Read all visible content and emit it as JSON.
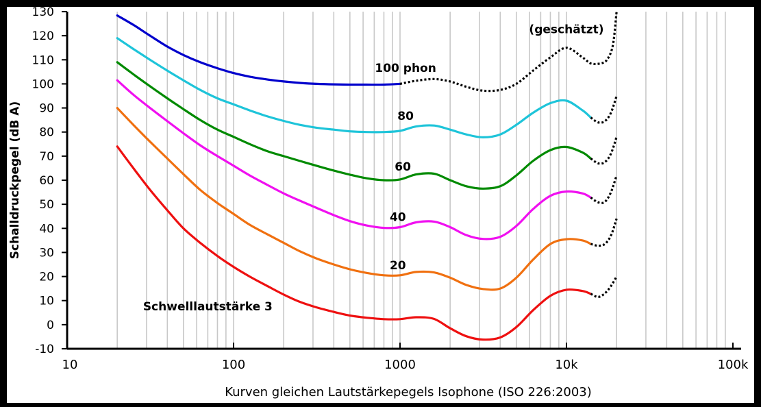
{
  "chart_data": {
    "type": "line",
    "title": "",
    "xlabel": "Kurven gleichen Lautstärkepegels Isophone (ISO 226:2003)",
    "ylabel": "Schalldruckpegel (dB A)",
    "x_scale": "log",
    "xlim": [
      10,
      100000
    ],
    "ylim": [
      -10,
      130
    ],
    "x_ticks": [
      10,
      100,
      1000,
      10000,
      100000
    ],
    "x_tick_labels": [
      "10",
      "100",
      "1000",
      "10k",
      "100k"
    ],
    "y_ticks": [
      -10,
      0,
      10,
      20,
      30,
      40,
      50,
      60,
      70,
      80,
      90,
      100,
      110,
      120,
      130
    ],
    "y_tick_labels": [
      "-10",
      "0",
      "10",
      "20",
      "30",
      "40",
      "50",
      "60",
      "70",
      "80",
      "90",
      "100",
      "110",
      "120",
      "130"
    ],
    "grid": "vertical",
    "annotations": [
      {
        "text": "(geschätzt)",
        "x": 10000,
        "y": 121
      },
      {
        "text": "100 phon",
        "x": 1080,
        "y": 105
      },
      {
        "text": "80",
        "x": 1080,
        "y": 85
      },
      {
        "text": "60",
        "x": 1040,
        "y": 64
      },
      {
        "text": "40",
        "x": 970,
        "y": 43
      },
      {
        "text": "20",
        "x": 970,
        "y": 23
      },
      {
        "text": "Schwelllautstärke 3",
        "x": 70,
        "y": 6
      }
    ],
    "estimated_style": "dotted black",
    "series": [
      {
        "name": "100 phon",
        "color": "#0000cc",
        "points": [
          [
            20,
            128.4
          ],
          [
            25,
            124.5
          ],
          [
            31.5,
            120
          ],
          [
            40,
            115.5
          ],
          [
            50,
            112
          ],
          [
            63,
            109
          ],
          [
            80,
            106.5
          ],
          [
            100,
            104.5
          ],
          [
            125,
            103
          ],
          [
            160,
            101.8
          ],
          [
            200,
            101
          ],
          [
            250,
            100.4
          ],
          [
            315,
            100
          ],
          [
            400,
            99.8
          ],
          [
            500,
            99.7
          ],
          [
            630,
            99.7
          ],
          [
            800,
            99.7
          ],
          [
            1000,
            100
          ]
        ],
        "estimated": [
          [
            1000,
            100
          ],
          [
            1250,
            101.3
          ],
          [
            1600,
            102
          ],
          [
            2000,
            101
          ],
          [
            2500,
            98.8
          ],
          [
            3150,
            97.2
          ],
          [
            4000,
            97.5
          ],
          [
            5000,
            100
          ],
          [
            6300,
            105.5
          ],
          [
            8000,
            111
          ],
          [
            10000,
            115
          ],
          [
            12500,
            111
          ],
          [
            14000,
            108.5
          ],
          [
            16000,
            108.5
          ],
          [
            17500,
            110
          ],
          [
            19000,
            116
          ],
          [
            20000,
            130
          ]
        ]
      },
      {
        "name": "80",
        "color": "#1ec4d9",
        "points": [
          [
            20,
            119
          ],
          [
            25,
            114.5
          ],
          [
            31.5,
            110
          ],
          [
            40,
            105.5
          ],
          [
            50,
            101.5
          ],
          [
            63,
            97.5
          ],
          [
            80,
            94
          ],
          [
            100,
            91.5
          ],
          [
            125,
            89
          ],
          [
            160,
            86.5
          ],
          [
            200,
            84.6
          ],
          [
            250,
            83
          ],
          [
            315,
            81.8
          ],
          [
            400,
            81
          ],
          [
            500,
            80.3
          ],
          [
            630,
            80
          ],
          [
            800,
            80
          ],
          [
            1000,
            80.5
          ],
          [
            1250,
            82.3
          ],
          [
            1600,
            82.7
          ],
          [
            2000,
            81
          ],
          [
            2500,
            79
          ],
          [
            3150,
            77.8
          ],
          [
            4000,
            79
          ],
          [
            5000,
            83
          ],
          [
            6300,
            88
          ],
          [
            8000,
            92
          ],
          [
            10000,
            93
          ],
          [
            12500,
            89
          ],
          [
            14000,
            86
          ]
        ],
        "estimated": [
          [
            14000,
            86
          ],
          [
            15500,
            84
          ],
          [
            17000,
            84.5
          ],
          [
            18500,
            88
          ],
          [
            20000,
            95
          ]
        ]
      },
      {
        "name": "60",
        "color": "#008a00",
        "points": [
          [
            20,
            109
          ],
          [
            25,
            104
          ],
          [
            31.5,
            99
          ],
          [
            40,
            94
          ],
          [
            50,
            89.5
          ],
          [
            63,
            85
          ],
          [
            80,
            81
          ],
          [
            100,
            78
          ],
          [
            125,
            75
          ],
          [
            160,
            72
          ],
          [
            200,
            70
          ],
          [
            250,
            68
          ],
          [
            315,
            66
          ],
          [
            400,
            64
          ],
          [
            500,
            62.3
          ],
          [
            630,
            60.8
          ],
          [
            800,
            60
          ],
          [
            1000,
            60.3
          ],
          [
            1250,
            62.4
          ],
          [
            1600,
            62.7
          ],
          [
            2000,
            60
          ],
          [
            2500,
            57.5
          ],
          [
            3150,
            56.5
          ],
          [
            4000,
            57.5
          ],
          [
            5000,
            62
          ],
          [
            6300,
            68
          ],
          [
            8000,
            72.5
          ],
          [
            10000,
            73.8
          ],
          [
            12500,
            71.5
          ],
          [
            14000,
            69
          ]
        ],
        "estimated": [
          [
            14000,
            69
          ],
          [
            15500,
            67
          ],
          [
            17000,
            67.5
          ],
          [
            18500,
            71
          ],
          [
            20000,
            78
          ]
        ]
      },
      {
        "name": "40",
        "color": "#f010f0",
        "points": [
          [
            20,
            101.5
          ],
          [
            25,
            95.5
          ],
          [
            31.5,
            90
          ],
          [
            40,
            84.5
          ],
          [
            50,
            79.5
          ],
          [
            63,
            74.5
          ],
          [
            80,
            70
          ],
          [
            100,
            66
          ],
          [
            125,
            62
          ],
          [
            160,
            58
          ],
          [
            200,
            54.5
          ],
          [
            250,
            51.5
          ],
          [
            315,
            48.5
          ],
          [
            400,
            45.5
          ],
          [
            500,
            43
          ],
          [
            630,
            41.2
          ],
          [
            800,
            40.2
          ],
          [
            1000,
            40.5
          ],
          [
            1250,
            42.5
          ],
          [
            1600,
            42.8
          ],
          [
            2000,
            40.5
          ],
          [
            2500,
            37.2
          ],
          [
            3150,
            35.6
          ],
          [
            4000,
            36.5
          ],
          [
            5000,
            41
          ],
          [
            6300,
            48
          ],
          [
            8000,
            53.5
          ],
          [
            10000,
            55.3
          ],
          [
            12500,
            54.5
          ],
          [
            14000,
            52.8
          ]
        ],
        "estimated": [
          [
            14000,
            52.8
          ],
          [
            15500,
            50.8
          ],
          [
            17000,
            51
          ],
          [
            18500,
            55
          ],
          [
            20000,
            62
          ]
        ]
      },
      {
        "name": "20",
        "color": "#f07010",
        "points": [
          [
            20,
            90
          ],
          [
            25,
            83
          ],
          [
            31.5,
            76
          ],
          [
            40,
            69
          ],
          [
            50,
            62.5
          ],
          [
            63,
            56
          ],
          [
            80,
            50.5
          ],
          [
            100,
            46
          ],
          [
            125,
            41.5
          ],
          [
            160,
            37.5
          ],
          [
            200,
            34
          ],
          [
            250,
            30.5
          ],
          [
            315,
            27.5
          ],
          [
            400,
            25
          ],
          [
            500,
            23
          ],
          [
            630,
            21.5
          ],
          [
            800,
            20.5
          ],
          [
            1000,
            20.5
          ],
          [
            1250,
            21.9
          ],
          [
            1600,
            21.7
          ],
          [
            2000,
            19.5
          ],
          [
            2500,
            16.5
          ],
          [
            3150,
            14.8
          ],
          [
            4000,
            15
          ],
          [
            5000,
            19.5
          ],
          [
            6300,
            27
          ],
          [
            8000,
            33.5
          ],
          [
            10000,
            35.5
          ],
          [
            12500,
            35
          ],
          [
            14000,
            33.5
          ]
        ],
        "estimated": [
          [
            14000,
            33.5
          ],
          [
            15500,
            32.8
          ],
          [
            17000,
            33.5
          ],
          [
            18500,
            37
          ],
          [
            20000,
            44
          ]
        ]
      },
      {
        "name": "Schwelllautstärke 3",
        "color": "#ee1010",
        "points": [
          [
            20,
            74
          ],
          [
            25,
            65
          ],
          [
            31.5,
            56
          ],
          [
            40,
            47.5
          ],
          [
            50,
            40
          ],
          [
            63,
            34
          ],
          [
            80,
            28.5
          ],
          [
            100,
            24
          ],
          [
            125,
            20
          ],
          [
            160,
            16
          ],
          [
            200,
            12.5
          ],
          [
            250,
            9.5
          ],
          [
            315,
            7.2
          ],
          [
            400,
            5.3
          ],
          [
            500,
            3.8
          ],
          [
            630,
            2.9
          ],
          [
            800,
            2.3
          ],
          [
            1000,
            2.3
          ],
          [
            1250,
            3.1
          ],
          [
            1600,
            2.4
          ],
          [
            2000,
            -1.5
          ],
          [
            2500,
            -4.8
          ],
          [
            3150,
            -6.2
          ],
          [
            4000,
            -5.3
          ],
          [
            5000,
            -1
          ],
          [
            6300,
            6
          ],
          [
            8000,
            12
          ],
          [
            10000,
            14.5
          ],
          [
            12500,
            14
          ],
          [
            14000,
            12.8
          ]
        ],
        "estimated": [
          [
            14000,
            12.8
          ],
          [
            15500,
            11.5
          ],
          [
            17000,
            13
          ],
          [
            18500,
            16
          ],
          [
            20000,
            20
          ]
        ]
      }
    ]
  }
}
